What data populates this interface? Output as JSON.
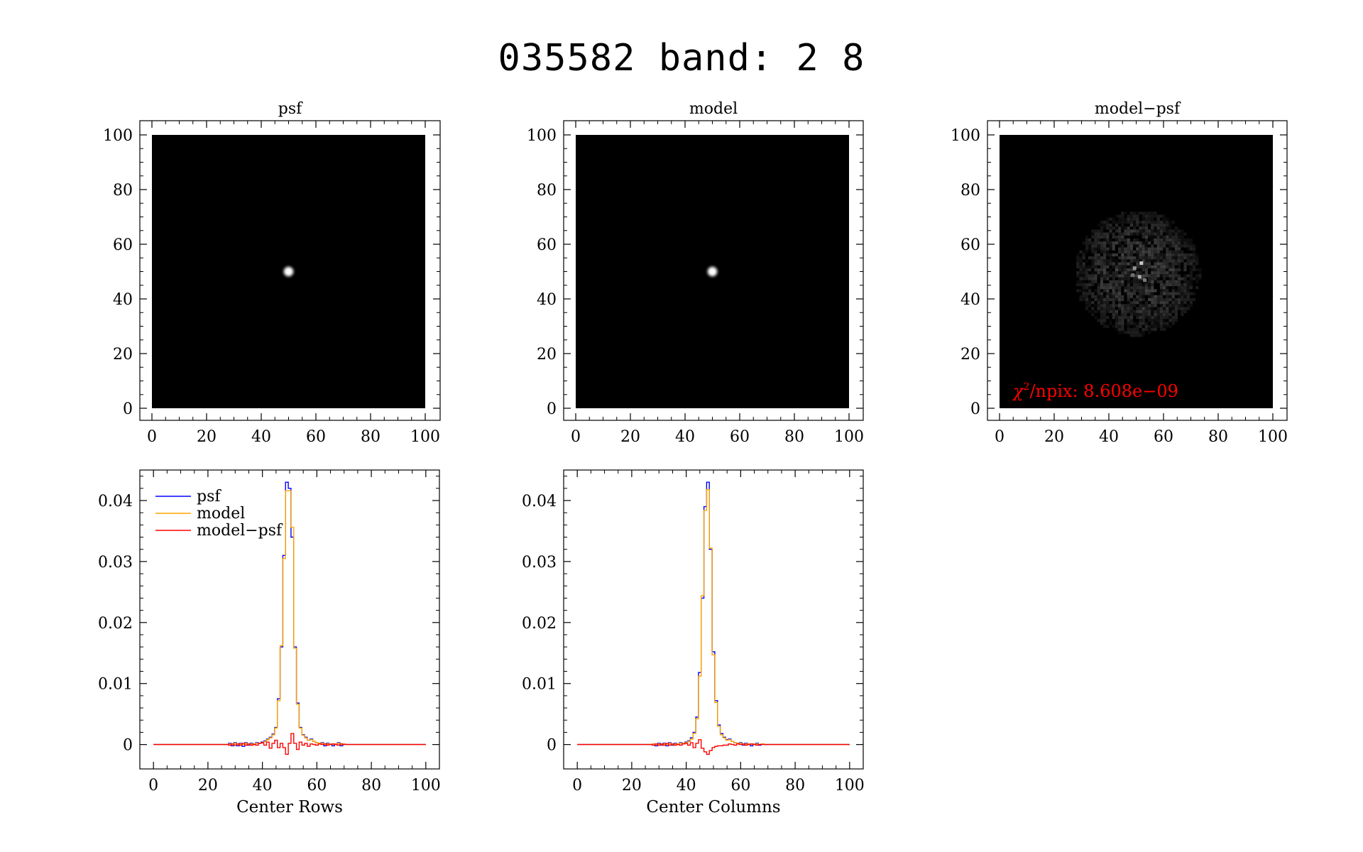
{
  "title": "035582 band: 2 8",
  "colors": {
    "psf": "#0000ff",
    "model": "#ffa500",
    "residual": "#ff0000",
    "text": "#000000",
    "chi": "#ff0000"
  },
  "chart_data": [
    {
      "type": "heatmap",
      "title": "psf",
      "xlim": [
        0,
        100
      ],
      "ylim": [
        0,
        100
      ],
      "xticks": [
        0,
        20,
        40,
        60,
        80,
        100
      ],
      "yticks": [
        0,
        20,
        40,
        60,
        80,
        100
      ],
      "peak": {
        "x": 50,
        "y": 50
      },
      "colormap": "gray"
    },
    {
      "type": "heatmap",
      "title": "model",
      "xlim": [
        0,
        100
      ],
      "ylim": [
        0,
        100
      ],
      "xticks": [
        0,
        20,
        40,
        60,
        80,
        100
      ],
      "yticks": [
        0,
        20,
        40,
        60,
        80,
        100
      ],
      "peak": {
        "x": 50,
        "y": 50
      },
      "colormap": "gray"
    },
    {
      "type": "heatmap",
      "title": "model−psf",
      "xlim": [
        0,
        100
      ],
      "ylim": [
        0,
        100
      ],
      "xticks": [
        0,
        20,
        40,
        60,
        80,
        100
      ],
      "yticks": [
        0,
        20,
        40,
        60,
        80,
        100
      ],
      "noise_center": {
        "x": 50,
        "y": 50
      },
      "noise_radius": 23,
      "colormap": "gray",
      "annotation": {
        "symbol": "χ",
        "superscript": "2",
        "text": "/npix: 8.608e−09"
      }
    },
    {
      "type": "line",
      "step": true,
      "xlabel": "Center Rows",
      "xlim": [
        -5,
        105
      ],
      "ylim": [
        -0.004,
        0.045
      ],
      "xticks": [
        0,
        20,
        40,
        60,
        80,
        100
      ],
      "yticks": [
        0,
        0.01,
        0.02,
        0.03,
        0.04
      ],
      "ytick_labels": [
        "0",
        "0.01",
        "0.02",
        "0.03",
        "0.04"
      ],
      "legend": "top-left",
      "x": [
        0,
        26,
        27,
        28,
        29,
        30,
        31,
        32,
        33,
        34,
        35,
        36,
        37,
        38,
        39,
        40,
        41,
        42,
        43,
        44,
        45,
        46,
        47,
        48,
        49,
        50,
        51,
        52,
        53,
        54,
        55,
        56,
        57,
        58,
        59,
        60,
        61,
        62,
        63,
        64,
        65,
        66,
        67,
        68,
        69,
        70,
        71,
        72,
        73,
        74,
        75,
        76,
        100
      ],
      "series": [
        {
          "name": "psf",
          "values": [
            0,
            0,
            0,
            0.0002,
            -0.0002,
            0.0003,
            -0.0002,
            0.0002,
            -0.0003,
            0.0003,
            -0.0001,
            0.0002,
            0.0001,
            0.0003,
            0.0002,
            0.0004,
            0.0006,
            0.0009,
            0.0012,
            0.0017,
            0.0028,
            0.0075,
            0.016,
            0.031,
            0.043,
            0.042,
            0.034,
            0.016,
            0.0068,
            0.0028,
            0.0016,
            0.0012,
            0.0007,
            0.0009,
            0.0005,
            0.0003,
            0.0002,
            0.0003,
            -0.0002,
            0.0002,
            0.0001,
            -0.0002,
            0.0001,
            0.0003,
            -0.0002,
            0.0001,
            0,
            0,
            0,
            0,
            0,
            0,
            0
          ]
        },
        {
          "name": "model",
          "values": [
            0,
            0,
            0,
            0.0001,
            0,
            0.0002,
            0,
            0.0001,
            0,
            0.0002,
            0,
            0.0001,
            0.0001,
            0.0002,
            0.0002,
            0.0003,
            0.0005,
            0.0008,
            0.0011,
            0.0016,
            0.0027,
            0.0072,
            0.0162,
            0.0305,
            0.0416,
            0.0416,
            0.0356,
            0.0158,
            0.0066,
            0.0027,
            0.0015,
            0.0011,
            0.0007,
            0.0008,
            0.0005,
            0.0003,
            0.0002,
            0.0002,
            0,
            0.0001,
            0.0001,
            0,
            0.0001,
            0.0002,
            0,
            0.0001,
            0,
            0,
            0,
            0,
            0,
            0,
            0
          ]
        },
        {
          "name": "model−psf",
          "values": [
            0,
            0,
            0,
            -0.0001,
            0.0001,
            -0.0001,
            0.0001,
            -0.0001,
            0.0002,
            -0.0001,
            0.0001,
            -0.0001,
            0,
            -0.0001,
            0.0002,
            0.0003,
            -0.0001,
            0.0004,
            -0.0006,
            0.0002,
            0.0007,
            -0.0005,
            0.0002,
            -0.0005,
            -0.0016,
            0.0002,
            0.0018,
            0.0002,
            -0.0008,
            0.0004,
            -0.0001,
            0.0002,
            -0.0003,
            0.0001,
            0,
            -0.0001,
            0.0001,
            0,
            0.0001,
            -0.0001,
            0,
            0.0001,
            0,
            -0.0001,
            0.0001,
            0,
            0,
            0,
            0,
            0,
            0,
            0,
            0
          ]
        }
      ]
    },
    {
      "type": "line",
      "step": true,
      "xlabel": "Center Columns",
      "xlim": [
        -5,
        105
      ],
      "ylim": [
        -0.004,
        0.045
      ],
      "xticks": [
        0,
        20,
        40,
        60,
        80,
        100
      ],
      "yticks": [
        0,
        0.01,
        0.02,
        0.03,
        0.04
      ],
      "ytick_labels": [
        "0",
        "0.01",
        "0.02",
        "0.03",
        "0.04"
      ],
      "x": [
        0,
        26,
        27,
        28,
        29,
        30,
        31,
        32,
        33,
        34,
        35,
        36,
        37,
        38,
        39,
        40,
        41,
        42,
        43,
        44,
        45,
        46,
        47,
        48,
        49,
        50,
        51,
        52,
        53,
        54,
        55,
        56,
        57,
        58,
        59,
        60,
        61,
        62,
        63,
        64,
        65,
        66,
        67,
        68,
        69,
        70,
        71,
        72,
        73,
        74,
        75,
        100
      ],
      "series": [
        {
          "name": "psf",
          "values": [
            0,
            0,
            0,
            0.0001,
            -0.0002,
            0.0002,
            -0.0001,
            0.0002,
            -0.0002,
            0.0003,
            -0.0001,
            0.0002,
            0.0001,
            0.0003,
            0.0002,
            0.0004,
            0.0006,
            0.0011,
            0.002,
            0.0045,
            0.0118,
            0.024,
            0.039,
            0.043,
            0.032,
            0.0152,
            0.0072,
            0.0032,
            0.0018,
            0.0012,
            0.0008,
            0.0009,
            0.0005,
            0.0003,
            0.0002,
            0.0003,
            -0.0001,
            0.0002,
            0.0001,
            -0.0002,
            0.0001,
            0.0002,
            -0.0001,
            0.0001,
            0,
            0,
            0,
            0,
            0,
            0,
            0,
            0
          ]
        },
        {
          "name": "model",
          "values": [
            0,
            0,
            0,
            0.0001,
            0,
            0.0001,
            0,
            0.0001,
            0,
            0.0002,
            0,
            0.0001,
            0.0001,
            0.0002,
            0.0002,
            0.0003,
            0.0005,
            0.0009,
            0.0018,
            0.0042,
            0.0112,
            0.0244,
            0.0384,
            0.0418,
            0.0322,
            0.0147,
            0.0069,
            0.003,
            0.0016,
            0.0011,
            0.0007,
            0.0008,
            0.0005,
            0.0003,
            0.0002,
            0.0002,
            0,
            0.0001,
            0.0001,
            0,
            0.0001,
            0.0001,
            0,
            0.0001,
            0,
            0,
            0,
            0,
            0,
            0,
            0,
            0
          ]
        },
        {
          "name": "model−psf",
          "values": [
            0,
            0,
            0,
            -0.0001,
            0.0001,
            -0.0001,
            0.0001,
            -0.0001,
            0.0002,
            -0.0001,
            0.0001,
            -0.0001,
            0,
            -0.0001,
            0.0001,
            0.0002,
            -0.0001,
            0.0003,
            -0.0005,
            0.0002,
            0.0008,
            -0.0006,
            -0.0012,
            -0.0016,
            -0.001,
            -0.0005,
            -0.0003,
            -0.0002,
            -0.0002,
            -0.0001,
            -0.0001,
            0.0001,
            0,
            -0.0001,
            0.0001,
            0,
            0.0001,
            -0.0001,
            0,
            0.0001,
            0,
            -0.0001,
            0,
            0,
            0,
            0,
            0,
            0,
            0,
            0,
            0,
            0
          ]
        }
      ]
    }
  ]
}
